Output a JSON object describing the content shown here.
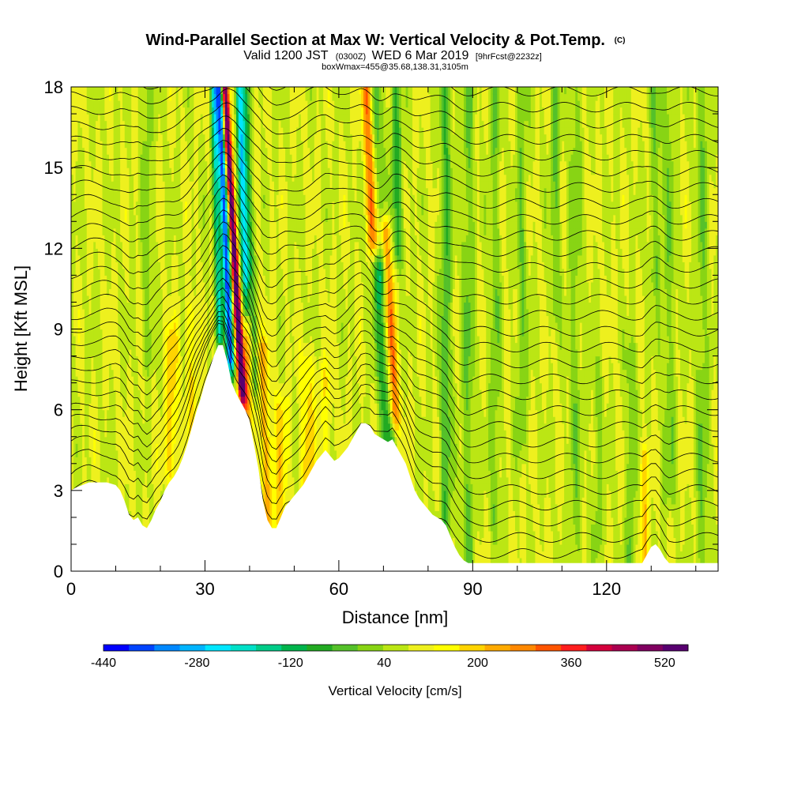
{
  "title": {
    "main": "Wind-Parallel Section at Max W: Vertical Velocity & Pot.Temp.",
    "main_suffix": "(C)",
    "sub_prefix": "Valid 1200 JST",
    "sub_utc": "(0300Z)",
    "sub_mid": "WED 6 Mar 2019",
    "sub_fcst": "[9hrFcst@2232z]",
    "box": "boxWmax=455@35.68,138.31,3105m"
  },
  "colors": {
    "palette": [
      "#0000ff",
      "#0044ff",
      "#0088ff",
      "#00b4ff",
      "#00e6ff",
      "#00e0c8",
      "#00cc88",
      "#00b44c",
      "#22aa22",
      "#55c12a",
      "#88d414",
      "#bbe614",
      "#eef01e",
      "#ffff00",
      "#ffd400",
      "#ffaa00",
      "#ff8800",
      "#ff5500",
      "#ff1e1e",
      "#d4003c",
      "#aa0050",
      "#800060",
      "#580070"
    ],
    "terrain": "#ffffff",
    "contour": "#000000"
  },
  "chart_data": {
    "type": "heatmap",
    "xlabel": "Distance [nm]",
    "ylabel": "Height [Kft MSL]",
    "xlim": [
      0,
      145
    ],
    "ylim": [
      0,
      18
    ],
    "x_ticks": [
      0,
      30,
      60,
      90,
      120
    ],
    "y_ticks": [
      0,
      3,
      6,
      9,
      12,
      15,
      18
    ],
    "x_tick_labels": [
      "0",
      "30",
      "60",
      "90",
      "120"
    ],
    "y_tick_labels": [
      "0",
      "3",
      "6",
      "9",
      "12",
      "15",
      "18"
    ],
    "colorbar": {
      "title": "Vertical Velocity [cm/s]",
      "min": -440,
      "max": 560,
      "step": 40,
      "tick_labels": [
        "-440",
        "-280",
        "-120",
        "40",
        "200",
        "360",
        "520"
      ],
      "tick_values": [
        -440,
        -280,
        -120,
        40,
        200,
        360,
        520
      ]
    },
    "terrain_profile": [
      [
        0,
        3.0
      ],
      [
        1,
        3.1
      ],
      [
        4,
        3.3
      ],
      [
        8,
        3.3
      ],
      [
        10,
        3.2
      ],
      [
        11,
        3.0
      ],
      [
        12,
        2.6
      ],
      [
        13,
        2.1
      ],
      [
        14,
        1.9
      ],
      [
        15,
        2.0
      ],
      [
        16,
        1.7
      ],
      [
        17,
        1.6
      ],
      [
        18,
        1.9
      ],
      [
        19,
        2.3
      ],
      [
        20,
        2.6
      ],
      [
        21,
        3.0
      ],
      [
        22,
        3.3
      ],
      [
        23,
        3.5
      ],
      [
        24,
        3.8
      ],
      [
        25,
        4.2
      ],
      [
        26,
        4.7
      ],
      [
        27,
        5.3
      ],
      [
        28,
        5.9
      ],
      [
        29,
        6.4
      ],
      [
        30,
        7.0
      ],
      [
        31,
        7.5
      ],
      [
        32,
        8.0
      ],
      [
        33,
        8.4
      ],
      [
        34,
        8.4
      ],
      [
        35,
        7.8
      ],
      [
        36,
        7.0
      ],
      [
        37,
        6.6
      ],
      [
        38,
        6.3
      ],
      [
        39,
        6.0
      ],
      [
        40,
        5.6
      ],
      [
        41,
        4.7
      ],
      [
        42,
        3.8
      ],
      [
        43,
        2.6
      ],
      [
        44,
        1.9
      ],
      [
        45,
        1.6
      ],
      [
        46,
        1.6
      ],
      [
        47,
        2.0
      ],
      [
        48,
        2.4
      ],
      [
        49,
        2.6
      ],
      [
        50,
        2.8
      ],
      [
        51,
        3.0
      ],
      [
        52,
        3.2
      ],
      [
        53,
        3.5
      ],
      [
        54,
        3.8
      ],
      [
        55,
        4.1
      ],
      [
        56,
        4.3
      ],
      [
        57,
        4.5
      ],
      [
        58,
        4.3
      ],
      [
        59,
        4.1
      ],
      [
        60,
        4.2
      ],
      [
        61,
        4.4
      ],
      [
        62,
        4.6
      ],
      [
        63,
        4.9
      ],
      [
        64,
        5.2
      ],
      [
        65,
        5.5
      ],
      [
        66,
        5.5
      ],
      [
        67,
        5.4
      ],
      [
        68,
        5.1
      ],
      [
        69,
        5.0
      ],
      [
        70,
        4.9
      ],
      [
        71,
        4.8
      ],
      [
        72,
        4.9
      ],
      [
        73,
        4.6
      ],
      [
        74,
        4.3
      ],
      [
        75,
        4.0
      ],
      [
        76,
        3.5
      ],
      [
        77,
        3.0
      ],
      [
        78,
        2.7
      ],
      [
        79,
        2.5
      ],
      [
        80,
        2.3
      ],
      [
        81,
        2.1
      ],
      [
        82,
        2.0
      ],
      [
        83,
        1.9
      ],
      [
        84,
        1.7
      ],
      [
        85,
        1.3
      ],
      [
        86,
        0.9
      ],
      [
        87,
        0.6
      ],
      [
        88,
        0.4
      ],
      [
        89,
        0.3
      ],
      [
        90,
        0.3
      ],
      [
        100,
        0.3
      ],
      [
        110,
        0.3
      ],
      [
        120,
        0.3
      ],
      [
        128,
        0.3
      ],
      [
        129,
        0.6
      ],
      [
        130,
        0.9
      ],
      [
        131,
        1.0
      ],
      [
        132,
        0.8
      ],
      [
        133,
        0.5
      ],
      [
        134,
        0.3
      ],
      [
        140,
        0.3
      ],
      [
        145,
        0.3
      ]
    ],
    "vertical_velocity_features": [
      {
        "x": 36.3,
        "w": 0.8,
        "amp": 480,
        "z0": 7.0,
        "z1": 18.0,
        "tilt": -0.35
      },
      {
        "x": 34.4,
        "w": 0.9,
        "amp": -440,
        "z0": 8.0,
        "z1": 18.0,
        "tilt": -0.25
      },
      {
        "x": 32.6,
        "w": 0.8,
        "amp": -220,
        "z0": 9.0,
        "z1": 18.0,
        "tilt": -0.15
      },
      {
        "x": 38.5,
        "w": 0.9,
        "amp": -300,
        "z0": 10.0,
        "z1": 18.0,
        "tilt": -0.2
      },
      {
        "x": 40.0,
        "w": 0.9,
        "amp": -140,
        "z0": 7.0,
        "z1": 18.0,
        "tilt": -0.2
      },
      {
        "x": 39.5,
        "w": 1.3,
        "amp": 170,
        "z0": 6.0,
        "z1": 10.0,
        "tilt": 0.1
      },
      {
        "x": 43.5,
        "w": 1.4,
        "amp": 130,
        "z0": 2.0,
        "z1": 8.0,
        "tilt": -0.2
      },
      {
        "x": 47.0,
        "w": 1.6,
        "amp": 90,
        "z0": 2.0,
        "z1": 6.0,
        "tilt": 0
      },
      {
        "x": 67.0,
        "w": 1.2,
        "amp": 200,
        "z0": 12.5,
        "z1": 18.0,
        "tilt": -0.25
      },
      {
        "x": 71.5,
        "w": 1.1,
        "amp": 240,
        "z0": 6.0,
        "z1": 12.5,
        "tilt": -0.3
      },
      {
        "x": 70.0,
        "w": 1.6,
        "amp": -150,
        "z0": 5.0,
        "z1": 11.0,
        "tilt": -0.3
      },
      {
        "x": 69.0,
        "w": 1.2,
        "amp": -110,
        "z0": 11.0,
        "z1": 18.0,
        "tilt": -0.25
      },
      {
        "x": 73.0,
        "w": 1.4,
        "amp": -120,
        "z0": 12.0,
        "z1": 18.0,
        "tilt": -0.1
      },
      {
        "x": 17.0,
        "w": 1.2,
        "amp": -60,
        "z0": 8.0,
        "z1": 18.0,
        "tilt": 0
      },
      {
        "x": 22.5,
        "w": 1.4,
        "amp": 110,
        "z0": 4.0,
        "z1": 8.5,
        "tilt": 0.05
      },
      {
        "x": 27.0,
        "w": 1.2,
        "amp": 80,
        "z0": 5.0,
        "z1": 9.5,
        "tilt": 0
      },
      {
        "x": 53.0,
        "w": 1.6,
        "amp": 90,
        "z0": 3.0,
        "z1": 7.5,
        "tilt": 0
      },
      {
        "x": 57.0,
        "w": 1.4,
        "amp": 70,
        "z0": 4.5,
        "z1": 7.0,
        "tilt": 0
      },
      {
        "x": 84.0,
        "w": 1.3,
        "amp": -110,
        "z0": 1.0,
        "z1": 18.0,
        "tilt": 0
      },
      {
        "x": 89.0,
        "w": 1.4,
        "amp": -80,
        "z0": 0.5,
        "z1": 18.0,
        "tilt": 0
      },
      {
        "x": 95.0,
        "w": 1.2,
        "amp": -70,
        "z0": 2.0,
        "z1": 18.0,
        "tilt": 0
      },
      {
        "x": 101.0,
        "w": 1.3,
        "amp": -70,
        "z0": 5.0,
        "z1": 18.0,
        "tilt": 0
      },
      {
        "x": 108.5,
        "w": 1.1,
        "amp": -80,
        "z0": 10.0,
        "z1": 18.0,
        "tilt": 0
      },
      {
        "x": 113.0,
        "w": 1.4,
        "amp": -60,
        "z0": 0.5,
        "z1": 18.0,
        "tilt": 0
      },
      {
        "x": 118.0,
        "w": 1.1,
        "amp": -60,
        "z0": 1.0,
        "z1": 7.0,
        "tilt": 0
      },
      {
        "x": 125.5,
        "w": 1.2,
        "amp": -70,
        "z0": 0.5,
        "z1": 8.0,
        "tilt": 0
      },
      {
        "x": 128.5,
        "w": 1.0,
        "amp": 110,
        "z0": 0.3,
        "z1": 4.0,
        "tilt": 0
      },
      {
        "x": 131.0,
        "w": 1.3,
        "amp": -70,
        "z0": 11.0,
        "z1": 18.0,
        "tilt": 0
      },
      {
        "x": 134.0,
        "w": 1.6,
        "amp": -60,
        "z0": 3.0,
        "z1": 18.0,
        "tilt": 0
      },
      {
        "x": 141.5,
        "w": 1.4,
        "amp": -70,
        "z0": 0.3,
        "z1": 18.0,
        "tilt": 0
      }
    ],
    "background_vertical_velocity": 40,
    "potential_temperature_contours": {
      "count": 30,
      "spacing_kft": 0.6
    }
  }
}
